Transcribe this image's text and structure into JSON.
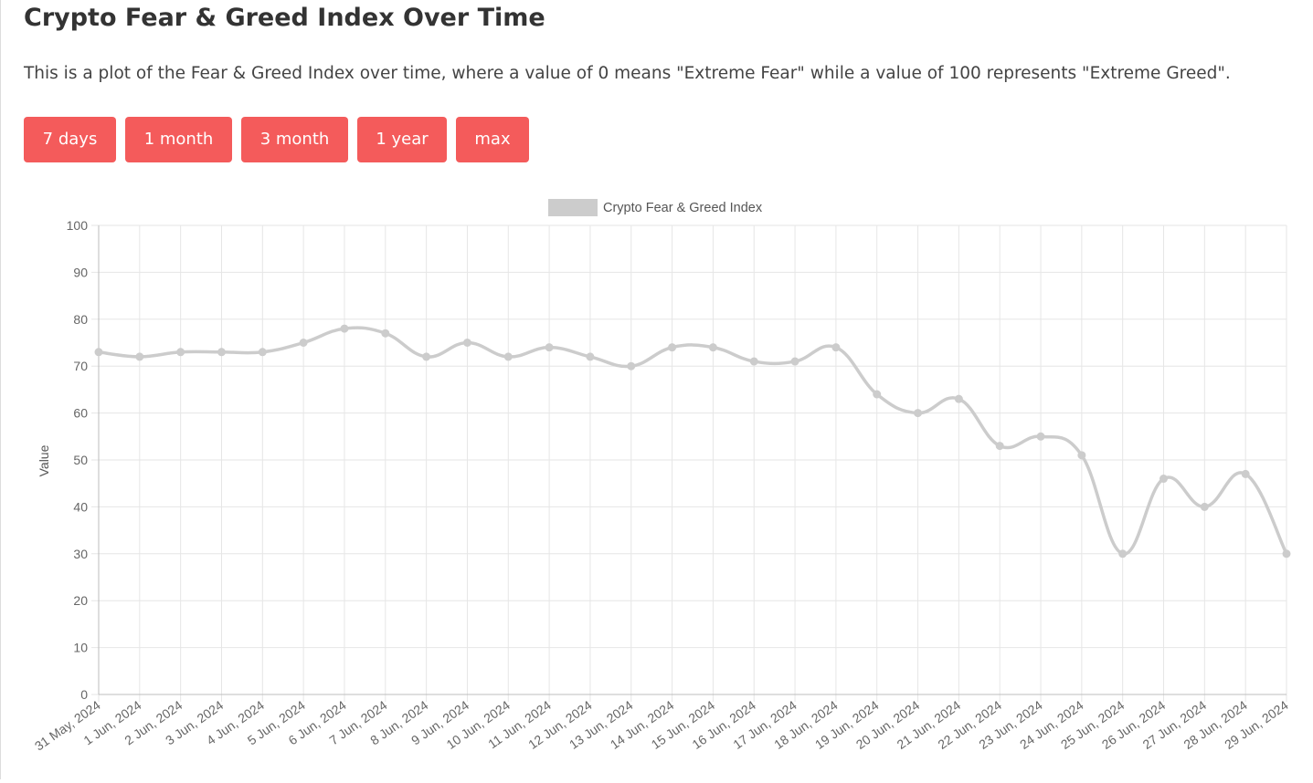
{
  "page": {
    "title": "Crypto Fear & Greed Index Over Time",
    "description": "This is a plot of the Fear & Greed Index over time, where a value of 0 means \"Extreme Fear\" while a value of 100 represents \"Extreme Greed\"."
  },
  "range_buttons": [
    {
      "label": "7 days"
    },
    {
      "label": "1 month"
    },
    {
      "label": "3 month"
    },
    {
      "label": "1 year"
    },
    {
      "label": "max"
    }
  ],
  "colors": {
    "button_bg": "#f45b5b",
    "line": "#cccccc",
    "grid": "#e6e6e6",
    "axis_text": "#666666"
  },
  "chart_data": {
    "type": "line",
    "title": "",
    "legend": {
      "label": "Crypto Fear & Greed Index",
      "position": "top"
    },
    "xlabel": "",
    "ylabel": "Value",
    "ylim": [
      0,
      100
    ],
    "yticks": [
      0,
      10,
      20,
      30,
      40,
      50,
      60,
      70,
      80,
      90,
      100
    ],
    "grid": true,
    "categories": [
      "31 May, 2024",
      "1 Jun, 2024",
      "2 Jun, 2024",
      "3 Jun, 2024",
      "4 Jun, 2024",
      "5 Jun, 2024",
      "6 Jun, 2024",
      "7 Jun, 2024",
      "8 Jun, 2024",
      "9 Jun, 2024",
      "10 Jun, 2024",
      "11 Jun, 2024",
      "12 Jun, 2024",
      "13 Jun, 2024",
      "14 Jun, 2024",
      "15 Jun, 2024",
      "16 Jun, 2024",
      "17 Jun, 2024",
      "18 Jun, 2024",
      "19 Jun, 2024",
      "20 Jun, 2024",
      "21 Jun, 2024",
      "22 Jun, 2024",
      "23 Jun, 2024",
      "24 Jun, 2024",
      "25 Jun, 2024",
      "26 Jun, 2024",
      "27 Jun, 2024",
      "28 Jun, 2024",
      "29 Jun, 2024"
    ],
    "series": [
      {
        "name": "Crypto Fear & Greed Index",
        "values": [
          73,
          72,
          73,
          73,
          73,
          75,
          78,
          77,
          72,
          75,
          72,
          74,
          72,
          70,
          74,
          74,
          71,
          71,
          74,
          64,
          60,
          63,
          53,
          55,
          51,
          30,
          46,
          40,
          47,
          30
        ]
      }
    ]
  }
}
